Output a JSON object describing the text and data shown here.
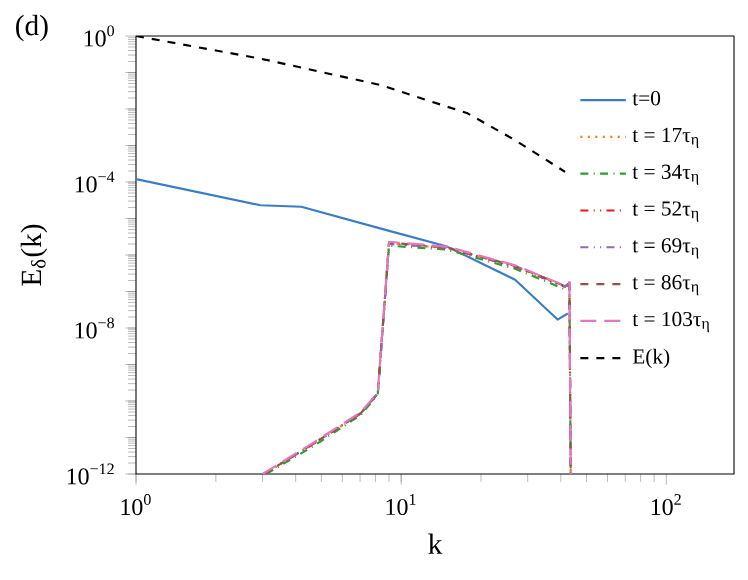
{
  "chart_data": {
    "type": "line",
    "xlabel": "k",
    "ylabel": "E$_{δ}$(k)",
    "annotations": [
      "(d)"
    ],
    "log": "xy",
    "legend": "right",
    "grid": false,
    "xlim": [
      1,
      180
    ],
    "ylim": [
      1e-12,
      1
    ],
    "xticks": [
      {
        "value": 1,
        "label": "10$^{0}$"
      },
      {
        "value": 10,
        "label": "10$^{1}$"
      },
      {
        "value": 100,
        "label": "10$^{2}$"
      }
    ],
    "yticks": [
      {
        "value": 1e-12,
        "label": "10$^{−12}$"
      },
      {
        "value": 1e-11,
        "label": null
      },
      {
        "value": 1e-10,
        "label": null
      },
      {
        "value": 1e-09,
        "label": null
      },
      {
        "value": 1e-08,
        "label": "10$^{−8}$"
      },
      {
        "value": 1e-07,
        "label": null
      },
      {
        "value": 1e-06,
        "label": null
      },
      {
        "value": 1e-05,
        "label": null
      },
      {
        "value": 0.0001,
        "label": "10$^{−4}$"
      },
      {
        "value": 0.001,
        "label": null
      },
      {
        "value": 0.01,
        "label": null
      },
      {
        "value": 0.1,
        "label": null
      },
      {
        "value": 1,
        "label": "10$^{0}$"
      }
    ],
    "series": [
      {
        "name": "t=0",
        "color": "#3a7dc4",
        "line_style": "solid",
        "x": [
          1,
          2.95,
          4.2,
          8.8,
          14.9,
          26.9,
          38.9,
          42.5
        ],
        "values": [
          0.00012,
          2.3e-05,
          2.1e-05,
          4.8e-06,
          1.7e-06,
          2.1e-07,
          1.7e-08,
          2.5e-08
        ]
      },
      {
        "name": "t = 17τ$_{η}$",
        "color": "#ff7f0e",
        "line_style": "dotted",
        "x": [
          3.04,
          4.7,
          7.06,
          8.16,
          9.0,
          14.9,
          26.9,
          41.5,
          43.1,
          43.6
        ],
        "values": [
          1e-12,
          6.9e-12,
          4.6e-11,
          1.6e-10,
          2.1e-06,
          1.55e-06,
          4.8e-07,
          1.35e-07,
          1.7e-07,
          1e-12
        ]
      },
      {
        "name": "t = 34τ$_{η}$",
        "color": "#2ca02c",
        "line_style": "dashdot",
        "x": [
          3.1,
          4.7,
          7.06,
          8.16,
          9.0,
          14.9,
          26.9,
          41.5,
          43.1,
          43.6
        ],
        "values": [
          1e-12,
          6e-12,
          4.2e-11,
          1.5e-10,
          1.8e-06,
          1.4e-06,
          4.2e-07,
          1.15e-07,
          1.5e-07,
          1e-12
        ]
      },
      {
        "name": "t = 52τ$_{η}$",
        "color": "#e41a1c",
        "line_style": "dashdotdot",
        "x": [
          3.04,
          4.7,
          7.06,
          8.16,
          9.0,
          14.9,
          26.9,
          41.5,
          43.1,
          43.6
        ],
        "values": [
          1e-12,
          6.9e-12,
          4.6e-11,
          1.6e-10,
          2.1e-06,
          1.55e-06,
          4.8e-07,
          1.35e-07,
          1.7e-07,
          1e-12
        ]
      },
      {
        "name": "t = 69τ$_{η}$",
        "color": "#9467bd",
        "line_style": "dashdotdot",
        "x": [
          3.04,
          4.7,
          7.06,
          8.16,
          9.0,
          14.9,
          26.9,
          41.5,
          43.1,
          43.6
        ],
        "values": [
          1e-12,
          7.2e-12,
          4.8e-11,
          1.6e-10,
          2e-06,
          1.6e-06,
          5e-07,
          1.4e-07,
          1.7e-07,
          1e-12
        ]
      },
      {
        "name": "t = 86τ$_{η}$",
        "color": "#8c564b",
        "line_style": "dashed",
        "x": [
          3.04,
          4.7,
          7.06,
          8.16,
          9.0,
          14.9,
          26.9,
          41.5,
          43.1,
          43.6
        ],
        "values": [
          1e-12,
          7e-12,
          4.7e-11,
          1.6e-10,
          2.2e-06,
          1.6e-06,
          5e-07,
          1.4e-07,
          1.8e-07,
          1e-12
        ]
      },
      {
        "name": "t = 103τ$_{η}$",
        "color": "#e377c2",
        "line_style": "longdash",
        "x": [
          3.0,
          4.7,
          7.06,
          8.16,
          9.0,
          14.9,
          26.9,
          41.5,
          43.1,
          43.6
        ],
        "values": [
          1e-12,
          7.5e-12,
          5e-11,
          1.7e-10,
          2.3e-06,
          1.7e-06,
          5.2e-07,
          1.45e-07,
          1.8e-07,
          1e-12
        ]
      },
      {
        "name": "E(k)",
        "color": "#000000",
        "line_style": "dashed",
        "x": [
          1,
          2.95,
          8.4,
          17.8,
          26.9,
          41.5
        ],
        "values": [
          1,
          0.24,
          0.045,
          0.0076,
          0.0014,
          0.00019
        ]
      }
    ]
  }
}
